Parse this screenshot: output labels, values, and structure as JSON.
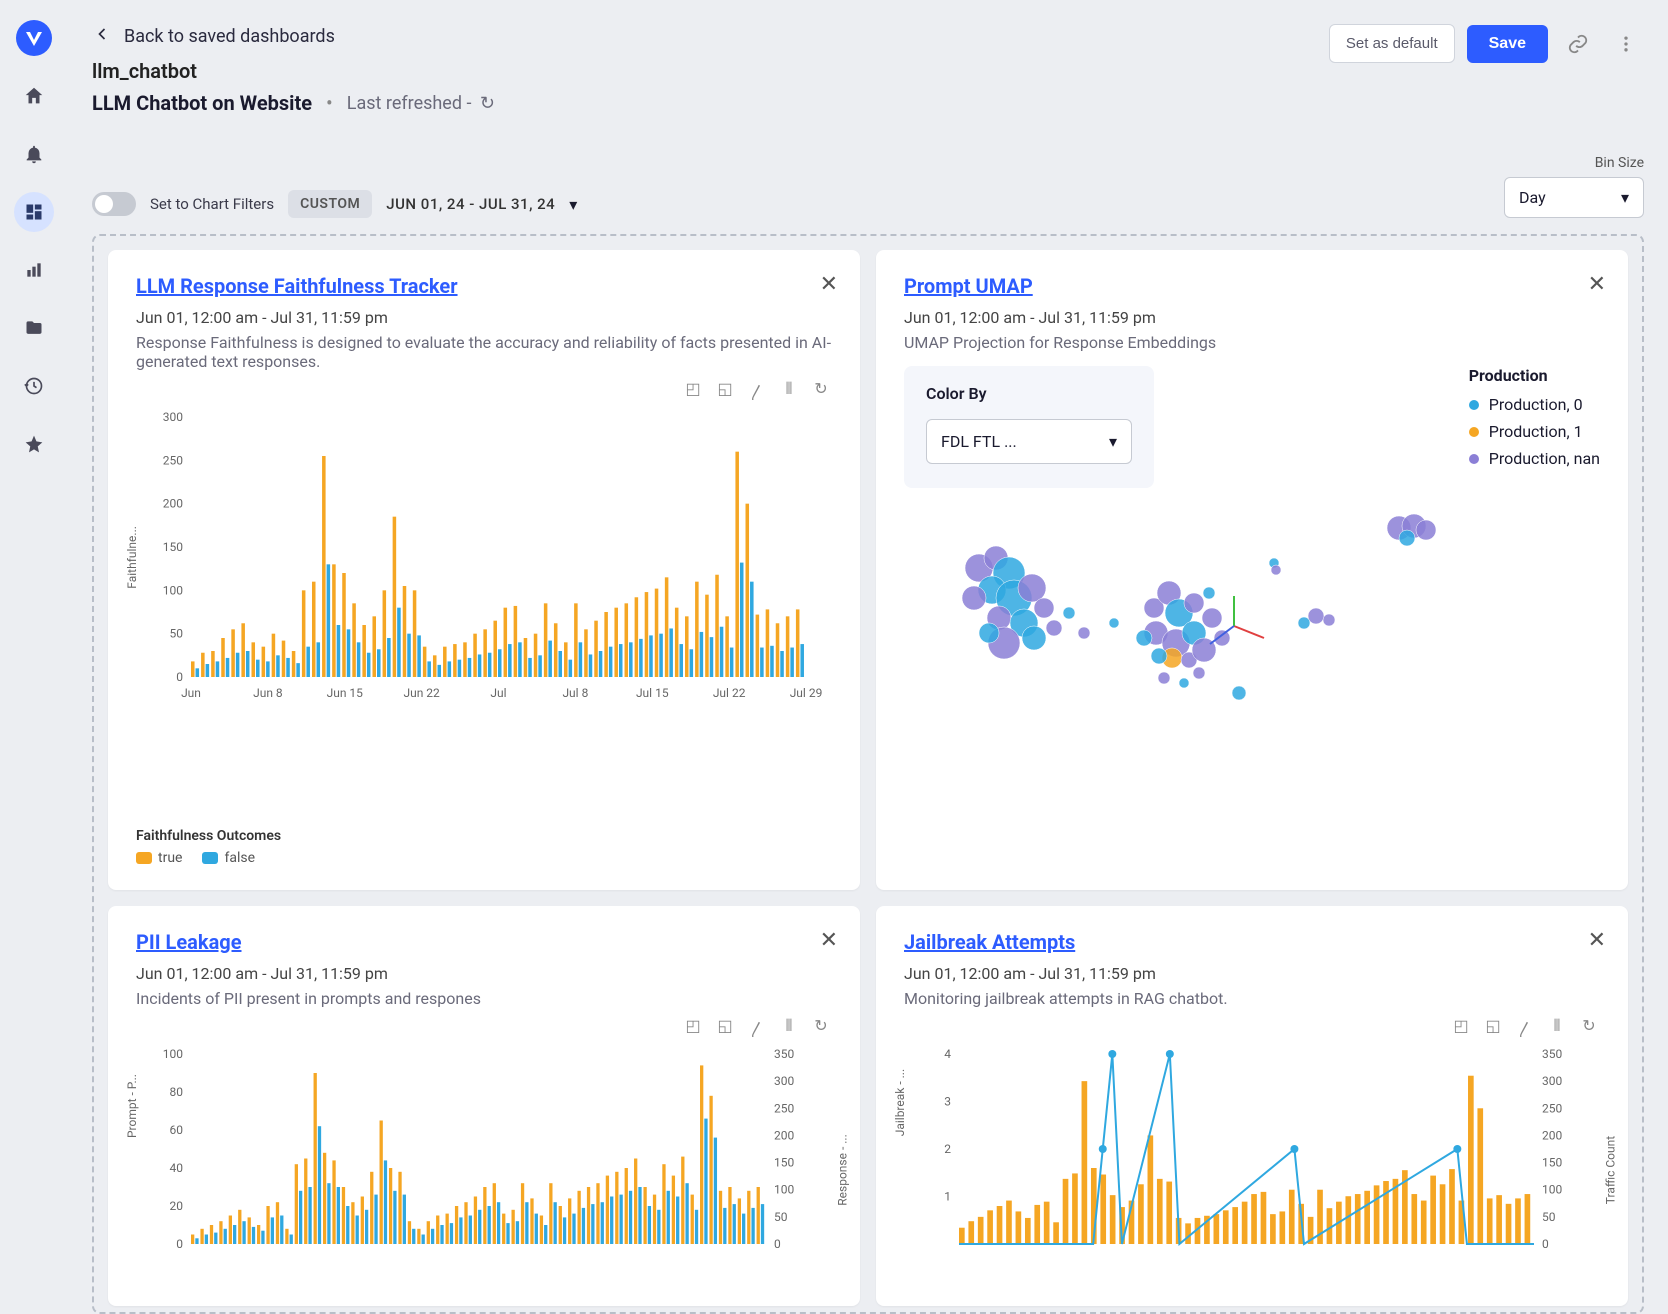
{
  "header": {
    "back_label": "Back to saved dashboards",
    "slug": "llm_chatbot",
    "title": "LLM Chatbot on Website",
    "refreshed_prefix": "Last refreshed -",
    "set_default": "Set as default",
    "save": "Save"
  },
  "filters": {
    "toggle_label": "Set to Chart Filters",
    "chip": "CUSTOM",
    "date_range": "JUN 01, 24 - JUL 31, 24",
    "bin_label": "Bin Size",
    "bin_value": "Day"
  },
  "cards": {
    "faithfulness": {
      "title": "LLM Response Faithfulness Tracker",
      "date": "Jun 01, 12:00 am - Jul 31, 11:59 pm",
      "desc": "Response Faithfulness is designed to evaluate the accuracy and reliability of facts presented in AI-generated text responses.",
      "y_label": "Faithfulne...",
      "legend_title": "Faithfulness Outcomes",
      "legend_items": [
        {
          "label": "true",
          "color": "#f5a623"
        },
        {
          "label": "false",
          "color": "#2fa8e0"
        }
      ],
      "chart": {
        "type": "grouped-bar",
        "ylim": [
          0,
          300
        ],
        "ytick_step": 50,
        "x_labels": [
          "Jun",
          "Jun 8",
          "Jun 15",
          "Jun 22",
          "Jul",
          "Jul 8",
          "Jul 15",
          "Jul 22",
          "Jul 29"
        ],
        "colors": {
          "true": "#f5a623",
          "false": "#2fa8e0"
        },
        "true_vals": [
          18,
          28,
          30,
          45,
          55,
          62,
          40,
          35,
          50,
          42,
          30,
          100,
          110,
          255,
          130,
          120,
          85,
          60,
          70,
          100,
          185,
          105,
          100,
          35,
          25,
          35,
          38,
          40,
          50,
          55,
          65,
          80,
          82,
          45,
          50,
          85,
          62,
          40,
          85,
          55,
          65,
          75,
          80,
          85,
          92,
          98,
          102,
          115,
          80,
          70,
          110,
          95,
          118,
          70,
          260,
          200,
          72,
          78,
          62,
          70,
          78
        ],
        "false_vals": [
          10,
          15,
          18,
          22,
          28,
          30,
          20,
          18,
          25,
          22,
          16,
          35,
          40,
          130,
          60,
          55,
          40,
          28,
          32,
          45,
          80,
          50,
          48,
          18,
          14,
          18,
          20,
          22,
          26,
          28,
          32,
          38,
          40,
          22,
          25,
          42,
          30,
          20,
          40,
          26,
          30,
          35,
          38,
          40,
          44,
          48,
          50,
          56,
          38,
          32,
          52,
          46,
          58,
          34,
          132,
          110,
          34,
          36,
          30,
          34,
          38
        ]
      }
    },
    "umap": {
      "title": "Prompt UMAP",
      "date": "Jun 01, 12:00 am - Jul 31, 11:59 pm",
      "desc": "UMAP Projection for Response Embeddings",
      "colorby_label": "Color By",
      "colorby_value": "FDL FTL ...",
      "legend_title": "Production",
      "legend_items": [
        {
          "label": "Production, 0",
          "color": "#2fa8e0"
        },
        {
          "label": "Production, 1",
          "color": "#f5a623"
        },
        {
          "label": "Production, nan",
          "color": "#8b7fd6"
        }
      ],
      "scatter": {
        "xlim": [
          0,
          560
        ],
        "ylim": [
          0,
          260
        ],
        "points": [
          {
            "x": 75,
            "y": 70,
            "r": 14,
            "c": "#8b7fd6"
          },
          {
            "x": 92,
            "y": 60,
            "r": 12,
            "c": "#8b7fd6"
          },
          {
            "x": 105,
            "y": 75,
            "r": 16,
            "c": "#2fa8e0"
          },
          {
            "x": 88,
            "y": 92,
            "r": 14,
            "c": "#2fa8e0"
          },
          {
            "x": 70,
            "y": 100,
            "r": 12,
            "c": "#8b7fd6"
          },
          {
            "x": 110,
            "y": 100,
            "r": 18,
            "c": "#2fa8e0"
          },
          {
            "x": 128,
            "y": 90,
            "r": 14,
            "c": "#8b7fd6"
          },
          {
            "x": 95,
            "y": 120,
            "r": 12,
            "c": "#8b7fd6"
          },
          {
            "x": 120,
            "y": 125,
            "r": 14,
            "c": "#2fa8e0"
          },
          {
            "x": 140,
            "y": 110,
            "r": 10,
            "c": "#8b7fd6"
          },
          {
            "x": 130,
            "y": 140,
            "r": 12,
            "c": "#2fa8e0"
          },
          {
            "x": 100,
            "y": 145,
            "r": 16,
            "c": "#8b7fd6"
          },
          {
            "x": 85,
            "y": 135,
            "r": 10,
            "c": "#2fa8e0"
          },
          {
            "x": 150,
            "y": 130,
            "r": 8,
            "c": "#8b7fd6"
          },
          {
            "x": 165,
            "y": 115,
            "r": 6,
            "c": "#2fa8e0"
          },
          {
            "x": 180,
            "y": 135,
            "r": 6,
            "c": "#8b7fd6"
          },
          {
            "x": 210,
            "y": 125,
            "r": 5,
            "c": "#2fa8e0"
          },
          {
            "x": 250,
            "y": 110,
            "r": 10,
            "c": "#8b7fd6"
          },
          {
            "x": 265,
            "y": 95,
            "r": 12,
            "c": "#8b7fd6"
          },
          {
            "x": 275,
            "y": 115,
            "r": 14,
            "c": "#2fa8e0"
          },
          {
            "x": 290,
            "y": 105,
            "r": 10,
            "c": "#8b7fd6"
          },
          {
            "x": 252,
            "y": 135,
            "r": 12,
            "c": "#8b7fd6"
          },
          {
            "x": 272,
            "y": 145,
            "r": 14,
            "c": "#8b7fd6"
          },
          {
            "x": 290,
            "y": 135,
            "r": 12,
            "c": "#2fa8e0"
          },
          {
            "x": 308,
            "y": 120,
            "r": 10,
            "c": "#8b7fd6"
          },
          {
            "x": 268,
            "y": 160,
            "r": 10,
            "c": "#f5a623"
          },
          {
            "x": 285,
            "y": 162,
            "r": 8,
            "c": "#8b7fd6"
          },
          {
            "x": 255,
            "y": 158,
            "r": 8,
            "c": "#2fa8e0"
          },
          {
            "x": 300,
            "y": 152,
            "r": 12,
            "c": "#8b7fd6"
          },
          {
            "x": 318,
            "y": 140,
            "r": 8,
            "c": "#8b7fd6"
          },
          {
            "x": 260,
            "y": 180,
            "r": 6,
            "c": "#8b7fd6"
          },
          {
            "x": 280,
            "y": 185,
            "r": 5,
            "c": "#2fa8e0"
          },
          {
            "x": 295,
            "y": 175,
            "r": 6,
            "c": "#8b7fd6"
          },
          {
            "x": 305,
            "y": 95,
            "r": 6,
            "c": "#2fa8e0"
          },
          {
            "x": 240,
            "y": 140,
            "r": 8,
            "c": "#2fa8e0"
          },
          {
            "x": 335,
            "y": 195,
            "r": 7,
            "c": "#2fa8e0"
          },
          {
            "x": 370,
            "y": 65,
            "r": 5,
            "c": "#2fa8e0"
          },
          {
            "x": 372,
            "y": 72,
            "r": 5,
            "c": "#8b7fd6"
          },
          {
            "x": 412,
            "y": 118,
            "r": 8,
            "c": "#8b7fd6"
          },
          {
            "x": 400,
            "y": 125,
            "r": 6,
            "c": "#2fa8e0"
          },
          {
            "x": 425,
            "y": 122,
            "r": 6,
            "c": "#8b7fd6"
          },
          {
            "x": 495,
            "y": 30,
            "r": 12,
            "c": "#8b7fd6"
          },
          {
            "x": 510,
            "y": 28,
            "r": 12,
            "c": "#8b7fd6"
          },
          {
            "x": 522,
            "y": 32,
            "r": 10,
            "c": "#8b7fd6"
          },
          {
            "x": 503,
            "y": 40,
            "r": 8,
            "c": "#2fa8e0"
          }
        ],
        "axes": {
          "origin": {
            "x": 330,
            "y": 128
          },
          "x_color": "#e04040",
          "y_color": "#40c040",
          "z_color": "#4060e0",
          "len": 30
        }
      }
    },
    "pii": {
      "title": "PII Leakage",
      "date": "Jun 01, 12:00 am - Jul 31, 11:59 pm",
      "desc": "Incidents of PII present in prompts and respones",
      "y_label": "Prompt - P...",
      "y2_label": "Response - ...",
      "chart": {
        "type": "bar-dual-axis",
        "ylim": [
          0,
          100
        ],
        "ytick_step": 20,
        "y2lim": [
          0,
          350
        ],
        "y2tick_step": 50,
        "colors": {
          "a": "#f5a623",
          "b": "#2fa8e0"
        },
        "a_vals": [
          5,
          8,
          10,
          12,
          15,
          18,
          14,
          10,
          20,
          22,
          8,
          42,
          45,
          90,
          48,
          44,
          30,
          22,
          25,
          38,
          65,
          40,
          38,
          12,
          8,
          12,
          15,
          16,
          20,
          22,
          25,
          30,
          32,
          16,
          18,
          32,
          24,
          15,
          32,
          20,
          24,
          28,
          30,
          32,
          36,
          38,
          40,
          45,
          30,
          26,
          42,
          36,
          46,
          26,
          94,
          78,
          28,
          30,
          24,
          28,
          30
        ],
        "b_vals": [
          3,
          5,
          6,
          8,
          10,
          12,
          9,
          7,
          14,
          15,
          5,
          28,
          30,
          62,
          32,
          30,
          20,
          15,
          18,
          26,
          44,
          28,
          26,
          8,
          5,
          8,
          10,
          11,
          14,
          15,
          18,
          20,
          22,
          11,
          12,
          22,
          16,
          10,
          22,
          14,
          16,
          19,
          21,
          22,
          25,
          26,
          28,
          30,
          20,
          18,
          28,
          25,
          32,
          18,
          66,
          56,
          19,
          21,
          16,
          19,
          21
        ]
      }
    },
    "jailbreak": {
      "title": "Jailbreak Attempts",
      "date": "Jun 01, 12:00 am - Jul 31, 11:59 pm",
      "desc": "Monitoring jailbreak attempts in RAG chatbot.",
      "y_label": "Jailbreak - ...",
      "y2_label": "Traffic Count",
      "chart": {
        "type": "bar-line",
        "ylim": [
          0,
          4
        ],
        "ytick_step": 1,
        "y2lim": [
          0,
          350
        ],
        "y2tick_step": 50,
        "colors": {
          "bar": "#f5a623",
          "line": "#2fa8e0"
        },
        "bar_vals": [
          30,
          42,
          50,
          62,
          70,
          80,
          60,
          48,
          72,
          78,
          40,
          120,
          130,
          300,
          140,
          128,
          90,
          68,
          80,
          110,
          200,
          120,
          115,
          48,
          38,
          48,
          52,
          55,
          62,
          68,
          78,
          92,
          96,
          55,
          60,
          100,
          74,
          50,
          100,
          66,
          78,
          88,
          92,
          98,
          108,
          116,
          120,
          136,
          92,
          80,
          126,
          110,
          138,
          80,
          310,
          250,
          84,
          90,
          74,
          84,
          92
        ],
        "line_points": [
          [
            0,
            0
          ],
          [
            14,
            0
          ],
          [
            15,
            2
          ],
          [
            16,
            4
          ],
          [
            17,
            0
          ],
          [
            22,
            4
          ],
          [
            23,
            0
          ],
          [
            35,
            2
          ],
          [
            36,
            0
          ],
          [
            52,
            2
          ],
          [
            53,
            0
          ],
          [
            60,
            0
          ]
        ]
      }
    }
  }
}
